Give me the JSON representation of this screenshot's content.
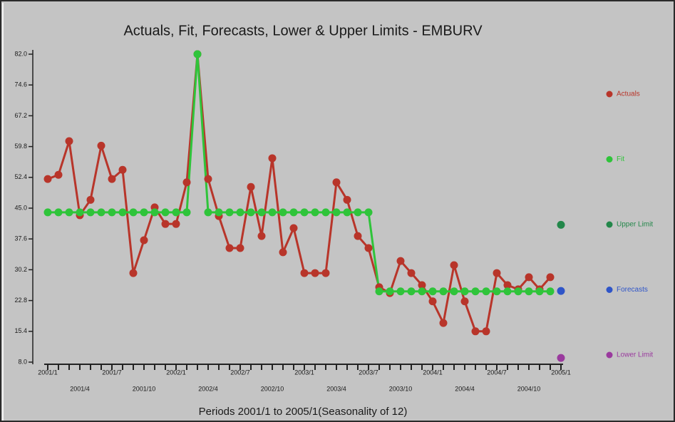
{
  "chart_data": {
    "type": "line",
    "title": "Actuals, Fit, Forecasts, Lower & Upper Limits - EMBURV",
    "x_label": "Periods 2001/1 to 2005/1(Seasonality of 12)",
    "categories": [
      "2001/1",
      null,
      null,
      "2001/4",
      null,
      null,
      "2001/7",
      null,
      null,
      "2001/10",
      null,
      null,
      "2002/1",
      null,
      null,
      "2002/4",
      null,
      null,
      "2002/7",
      null,
      null,
      "2002/10",
      null,
      null,
      "2003/1",
      null,
      null,
      "2003/4",
      null,
      null,
      "2003/7",
      null,
      null,
      "2003/10",
      null,
      null,
      "2004/1",
      null,
      null,
      "2004/4",
      null,
      null,
      "2004/7",
      null,
      null,
      "2004/10",
      null,
      null,
      "2005/1"
    ],
    "ylim": [
      8,
      82
    ],
    "yticks": [
      {
        "value": 8,
        "label": "8.0"
      },
      15.4,
      22.8,
      30.2,
      37.6,
      {
        "value": 45,
        "label": "45.0"
      },
      52.4,
      59.8,
      67.2,
      74.6,
      {
        "value": 82,
        "label": "82.0"
      }
    ],
    "series": [
      {
        "name": "Actuals",
        "color": "#b8352a",
        "values": [
          52.0,
          53.0,
          61.1,
          43.3,
          47.0,
          60.0,
          52.0,
          54.2,
          29.4,
          37.3,
          45.2,
          41.2,
          41.2,
          51.2,
          82.0,
          52.0,
          43.1,
          35.4,
          35.4,
          50.1,
          38.3,
          57.0,
          34.4,
          40.2,
          29.4,
          29.4,
          29.4,
          51.2,
          47.0,
          38.3,
          35.4,
          26.0,
          24.6,
          32.3,
          29.4,
          26.5,
          22.6,
          17.4,
          31.3,
          22.6,
          15.4,
          15.4,
          29.4,
          26.5,
          25.5,
          28.4,
          25.5,
          28.4,
          null
        ]
      },
      {
        "name": "Fit",
        "color": "#2fc43a",
        "values": [
          44,
          44,
          44,
          44,
          44,
          44,
          44,
          44,
          44,
          44,
          44,
          44,
          44,
          44,
          82,
          44,
          44,
          44,
          44,
          44,
          44,
          44,
          44,
          44,
          44,
          44,
          44,
          44,
          44,
          44,
          44,
          25,
          25,
          25,
          25,
          25,
          25,
          25,
          25,
          25,
          25,
          25,
          25,
          25,
          25,
          25,
          25,
          25,
          null
        ]
      },
      {
        "name": "Upper Limit",
        "color": "#23874a",
        "values": [
          null,
          null,
          null,
          null,
          null,
          null,
          null,
          null,
          null,
          null,
          null,
          null,
          null,
          null,
          null,
          null,
          null,
          null,
          null,
          null,
          null,
          null,
          null,
          null,
          null,
          null,
          null,
          null,
          null,
          null,
          null,
          null,
          null,
          null,
          null,
          null,
          null,
          null,
          null,
          null,
          null,
          null,
          null,
          null,
          null,
          null,
          null,
          null,
          41.0
        ]
      },
      {
        "name": "Forecasts",
        "color": "#2f55c8",
        "values": [
          null,
          null,
          null,
          null,
          null,
          null,
          null,
          null,
          null,
          null,
          null,
          null,
          null,
          null,
          null,
          null,
          null,
          null,
          null,
          null,
          null,
          null,
          null,
          null,
          null,
          null,
          null,
          null,
          null,
          null,
          null,
          null,
          null,
          null,
          null,
          null,
          null,
          null,
          null,
          null,
          null,
          null,
          null,
          null,
          null,
          null,
          null,
          null,
          25.1
        ]
      },
      {
        "name": "Lower Limit",
        "color": "#9a3a9e",
        "values": [
          null,
          null,
          null,
          null,
          null,
          null,
          null,
          null,
          null,
          null,
          null,
          null,
          null,
          null,
          null,
          null,
          null,
          null,
          null,
          null,
          null,
          null,
          null,
          null,
          null,
          null,
          null,
          null,
          null,
          null,
          null,
          null,
          null,
          null,
          null,
          null,
          null,
          null,
          null,
          null,
          null,
          null,
          null,
          null,
          null,
          null,
          null,
          null,
          9.0
        ]
      }
    ]
  }
}
